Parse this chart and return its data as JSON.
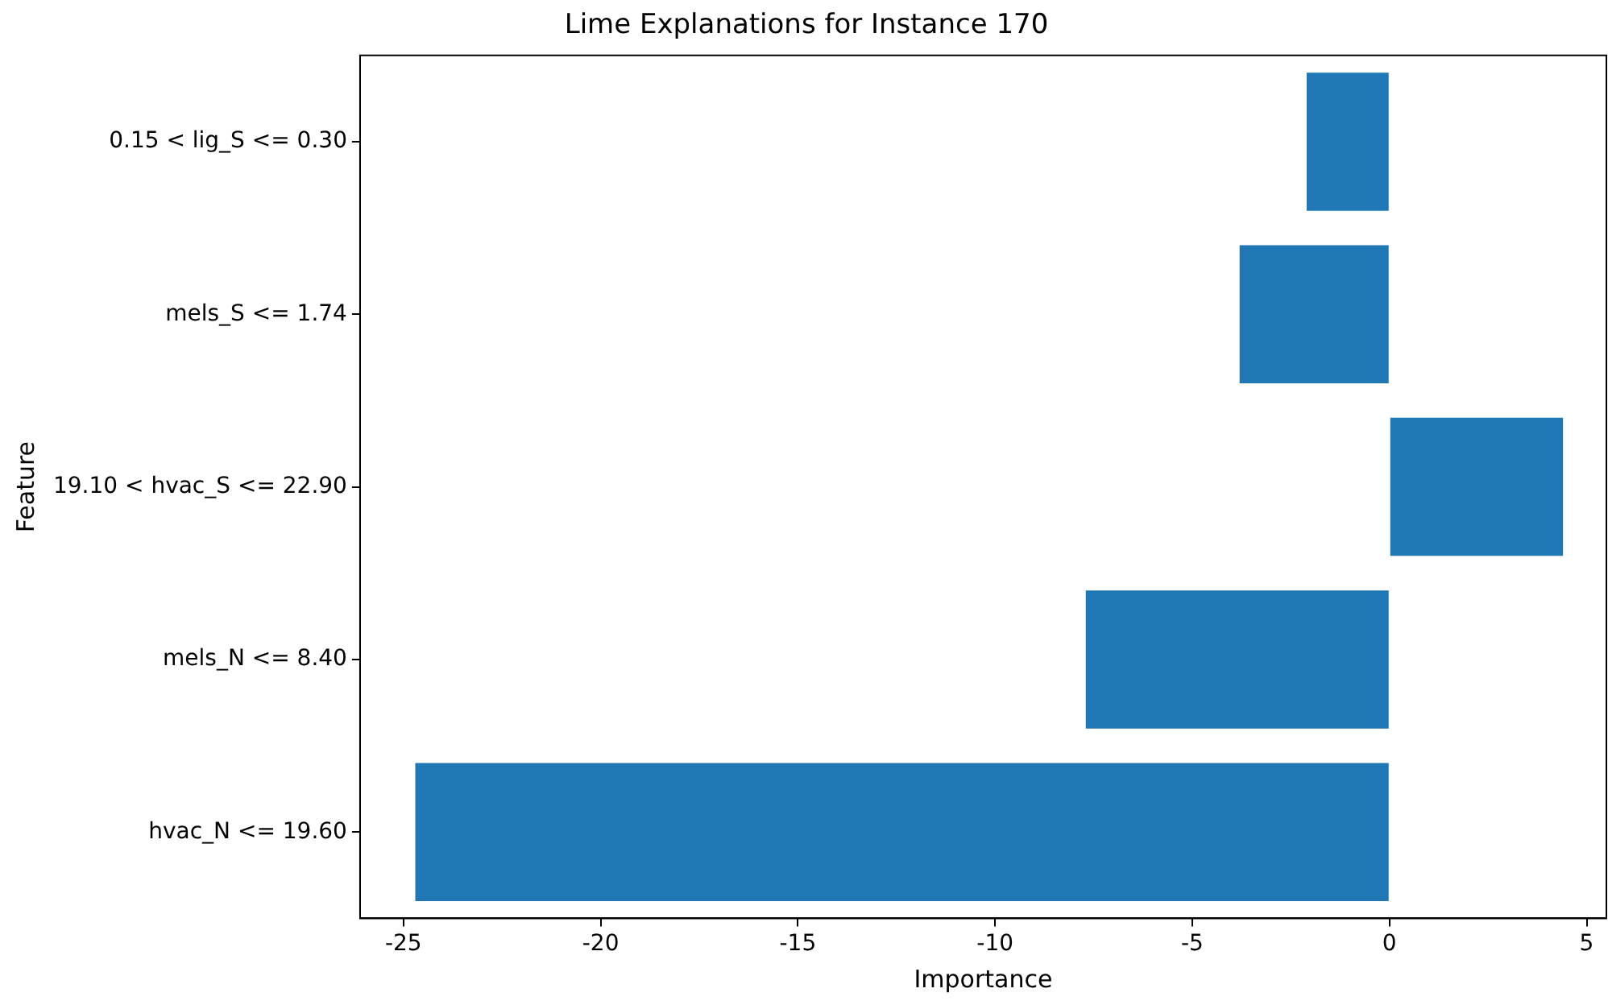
{
  "chart_data": {
    "type": "bar",
    "orientation": "horizontal",
    "title": "Lime Explanations for Instance 170",
    "xlabel": "Importance",
    "ylabel": "Feature",
    "categories": [
      "0.15 < lig_S <= 0.30",
      "mels_S <= 1.74",
      "19.10 < hvac_S <= 22.90",
      "mels_N <= 8.40",
      "hvac_N <= 19.60"
    ],
    "values": [
      -2.1,
      -3.8,
      4.4,
      -7.7,
      -24.7
    ],
    "color": "#1f77b4",
    "xlim": [
      -26.1,
      5.5
    ],
    "xticks": [
      -25,
      -20,
      -15,
      -10,
      -5,
      0,
      5
    ],
    "grid": false,
    "legend": false
  }
}
